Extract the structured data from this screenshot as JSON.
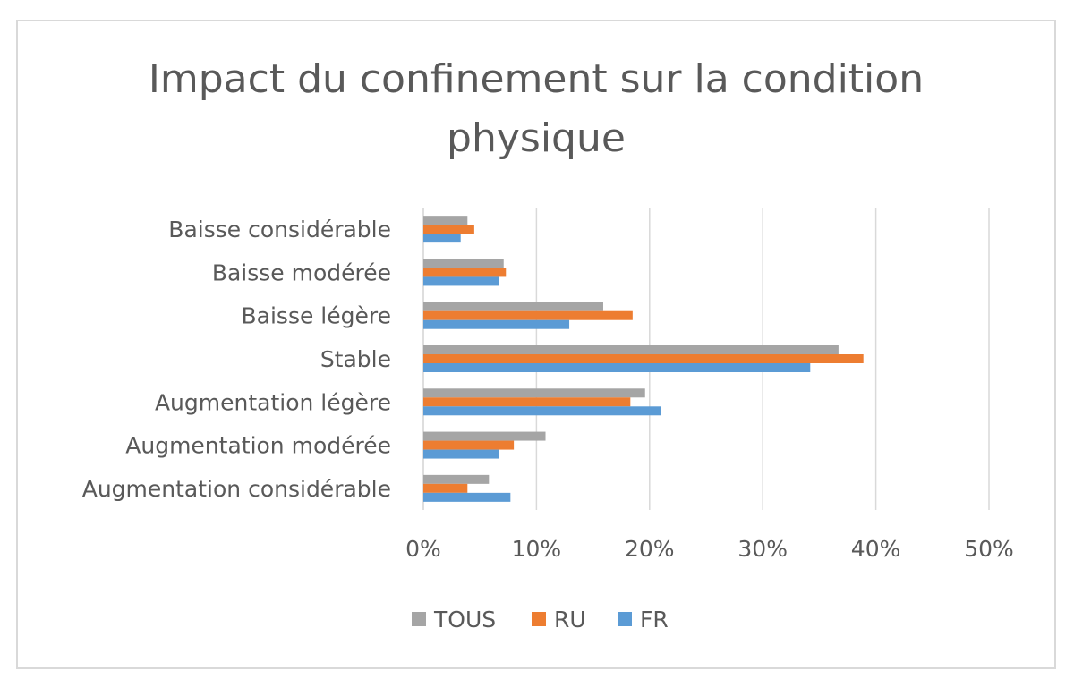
{
  "chart_data": {
    "type": "bar",
    "orientation": "horizontal",
    "title": "Impact du confinement sur la condition physique",
    "title_lines": [
      "Impact du confinement sur la condition",
      "physique"
    ],
    "categories": [
      "Baisse considérable",
      "Baisse modérée",
      "Baisse légère",
      "Stable",
      "Augmentation légère",
      "Augmentation modérée",
      "Augmentation considérable"
    ],
    "series": [
      {
        "name": "TOUS",
        "color": "#a5a5a5",
        "values": [
          3.9,
          7.1,
          15.9,
          36.7,
          19.6,
          10.8,
          5.8
        ]
      },
      {
        "name": "RU",
        "color": "#ed7d31",
        "values": [
          4.5,
          7.3,
          18.5,
          38.9,
          18.3,
          8.0,
          3.9
        ]
      },
      {
        "name": "FR",
        "color": "#5b9bd5",
        "values": [
          3.3,
          6.7,
          12.9,
          34.2,
          21.0,
          6.7,
          7.7
        ]
      }
    ],
    "xlim": [
      0,
      50
    ],
    "xticks": [
      "0%",
      "10%",
      "20%",
      "30%",
      "40%",
      "50%"
    ],
    "xlabel": "",
    "ylabel": "",
    "grid": "vertical",
    "legend": "bottom"
  }
}
